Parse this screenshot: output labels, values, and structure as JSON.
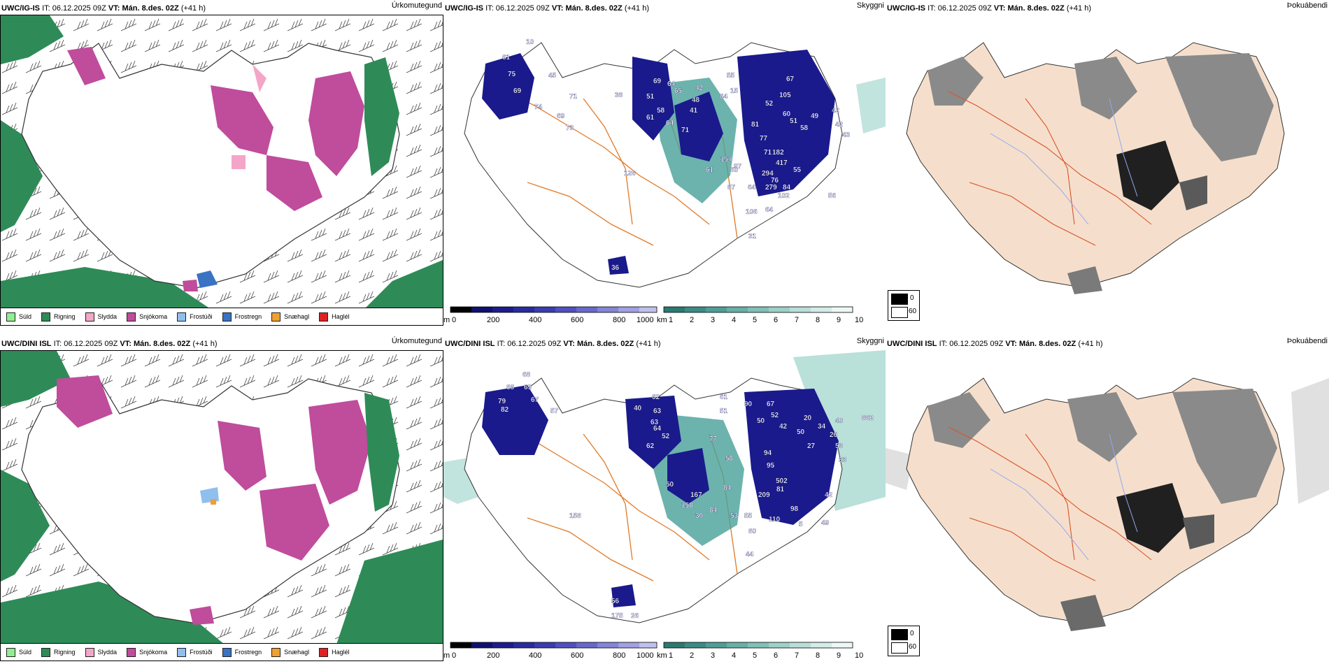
{
  "rows": [
    {
      "model": "UWC/IG-IS",
      "it_label": "IT:",
      "it_value": "06.12.2025 09Z",
      "vt_label": "VT:",
      "vt_value": "Mán. 8.des. 02Z",
      "lead": "(+41 h)",
      "panel_titles": [
        "Úrkomutegund",
        "Skyggni",
        "Þokuábendi"
      ],
      "numbers": [
        "10",
        "61",
        "75",
        "45",
        "69",
        "71",
        "74",
        "69",
        "73",
        "38",
        "69",
        "51",
        "64",
        "58",
        "65",
        "61",
        "64",
        "42",
        "48",
        "41",
        "71",
        "55",
        "15",
        "64",
        "67",
        "105",
        "52",
        "60",
        "51",
        "49",
        "58",
        "42",
        "42",
        "43",
        "81",
        "77",
        "71",
        "182",
        "417",
        "154",
        "97",
        "294",
        "76",
        "60",
        "61",
        "87",
        "64",
        "279",
        "84",
        "55",
        "102",
        "56",
        "106",
        "64",
        "31",
        "126",
        "36"
      ]
    },
    {
      "model": "UWC/DINI ISL",
      "it_label": "IT:",
      "it_value": "06.12.2025 09Z",
      "vt_label": "VT:",
      "vt_value": "Mán. 8.des. 02Z",
      "lead": "(+41 h)",
      "panel_titles": [
        "Úrkomutegund",
        "Skyggni",
        "Þokuábendi"
      ],
      "numbers": [
        "68",
        "69",
        "88",
        "67",
        "79",
        "82",
        "57",
        "62",
        "63",
        "40",
        "63",
        "64",
        "52",
        "62",
        "61",
        "51",
        "90",
        "67",
        "52",
        "50",
        "42",
        "20",
        "50",
        "34",
        "40",
        "26",
        "27",
        "53",
        "33",
        "77",
        "58",
        "94",
        "502",
        "84",
        "209",
        "167",
        "158",
        "95",
        "53",
        "81",
        "98",
        "50",
        "30",
        "84",
        "55",
        "110",
        "42",
        "80",
        "5",
        "49",
        "44",
        "158",
        "56",
        "175",
        "26",
        "882"
      ]
    }
  ],
  "ptype_legend": [
    {
      "label": "Súld",
      "color": "#90ee90"
    },
    {
      "label": "Rigning",
      "color": "#2e8b57"
    },
    {
      "label": "Slydda",
      "color": "#f4a6c8"
    },
    {
      "label": "Snjókoma",
      "color": "#c04c9c"
    },
    {
      "label": "Frostúði",
      "color": "#8fbfee"
    },
    {
      "label": "Frostregn",
      "color": "#3a72c4"
    },
    {
      "label": "Snæhagl",
      "color": "#f0a030"
    },
    {
      "label": "Haglél",
      "color": "#e02020"
    }
  ],
  "cloudbase_scale": {
    "unit": "m",
    "ticks": [
      "0",
      "200",
      "400",
      "600",
      "800",
      "1000"
    ]
  },
  "visibility_scale": {
    "unit": "km",
    "ticks": [
      "1",
      "2",
      "3",
      "4",
      "5",
      "6",
      "7",
      "8",
      "9",
      "10"
    ]
  },
  "fog_legend": [
    {
      "value": "0",
      "color": "#000000"
    },
    {
      "value": "60",
      "color": "#ffffff"
    }
  ]
}
